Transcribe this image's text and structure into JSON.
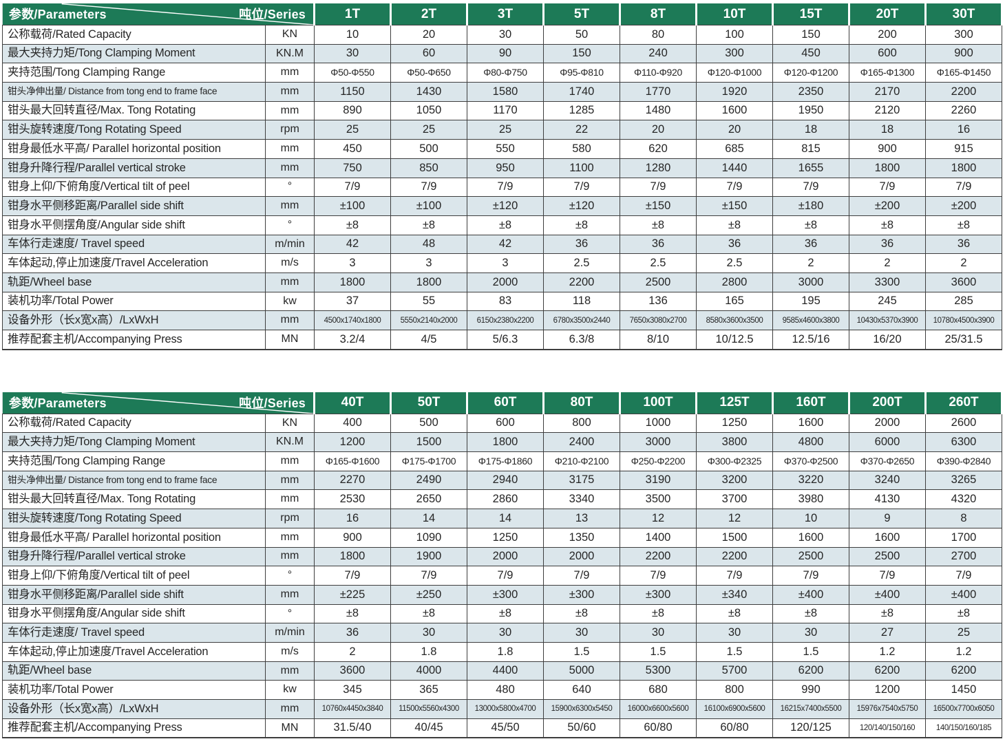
{
  "corner": {
    "parameters_label": "参数/Parameters",
    "series_label": "吨位/Series"
  },
  "colors": {
    "header_green": "#1d7a57",
    "row_alt_blue": "#dbe6eb",
    "border_dark": "#3d3d3d",
    "header_text": "#ffffff"
  },
  "parameters": [
    {
      "name": "公称载荷/Rated Capacity",
      "unit": "KN"
    },
    {
      "name": "最大夹持力矩/Tong Clamping Moment",
      "unit": "KN.M"
    },
    {
      "name": "夹持范围/Tong Clamping Range",
      "unit": "mm"
    },
    {
      "name": "钳头净伸出量/ Distance from tong end to frame face",
      "unit": "mm"
    },
    {
      "name": "钳头最大回转直径/Max. Tong Rotating",
      "unit": "mm"
    },
    {
      "name": "钳头旋转速度/Tong Rotating Speed",
      "unit": "rpm"
    },
    {
      "name": "钳身最低水平高/ Parallel horizontal position",
      "unit": "mm"
    },
    {
      "name": "钳身升降行程/Parallel vertical stroke",
      "unit": "mm"
    },
    {
      "name": "钳身上仰/下俯角度/Vertical tilt of peel",
      "unit": "°"
    },
    {
      "name": "钳身水平侧移距离/Parallel side shift",
      "unit": "mm"
    },
    {
      "name": "钳身水平侧摆角度/Angular side shift",
      "unit": "°"
    },
    {
      "name": "车体行走速度/ Travel speed",
      "unit": "m/min"
    },
    {
      "name": "车体起动,停止加速度/Travel Acceleration",
      "unit": "m/s"
    },
    {
      "name": "轨距/Wheel base",
      "unit": "mm"
    },
    {
      "name": "装机功率/Total Power",
      "unit": "kw"
    },
    {
      "name": "设备外形（长x宽x高）/LxWxH",
      "unit": "mm"
    },
    {
      "name": "推荐配套主机/Accompanying Press",
      "unit": "MN"
    }
  ],
  "tables": [
    {
      "series": [
        "1T",
        "2T",
        "3T",
        "5T",
        "8T",
        "10T",
        "15T",
        "20T",
        "30T"
      ],
      "rows": [
        [
          "10",
          "20",
          "30",
          "50",
          "80",
          "100",
          "150",
          "200",
          "300"
        ],
        [
          "30",
          "60",
          "90",
          "150",
          "240",
          "300",
          "450",
          "600",
          "900"
        ],
        [
          "Φ50-Φ550",
          "Φ50-Φ650",
          "Φ80-Φ750",
          "Φ95-Φ810",
          "Φ110-Φ920",
          "Φ120-Φ1000",
          "Φ120-Φ1200",
          "Φ165-Φ1300",
          "Φ165-Φ1450"
        ],
        [
          "1150",
          "1430",
          "1580",
          "1740",
          "1770",
          "1920",
          "2350",
          "2170",
          "2200"
        ],
        [
          "890",
          "1050",
          "1170",
          "1285",
          "1480",
          "1600",
          "1950",
          "2120",
          "2260"
        ],
        [
          "25",
          "25",
          "25",
          "22",
          "20",
          "20",
          "18",
          "18",
          "16"
        ],
        [
          "450",
          "500",
          "550",
          "580",
          "620",
          "685",
          "815",
          "900",
          "915"
        ],
        [
          "750",
          "850",
          "950",
          "1100",
          "1280",
          "1440",
          "1655",
          "1800",
          "1800"
        ],
        [
          "7/9",
          "7/9",
          "7/9",
          "7/9",
          "7/9",
          "7/9",
          "7/9",
          "7/9",
          "7/9"
        ],
        [
          "±100",
          "±100",
          "±120",
          "±120",
          "±150",
          "±150",
          "±180",
          "±200",
          "±200"
        ],
        [
          "±8",
          "±8",
          "±8",
          "±8",
          "±8",
          "±8",
          "±8",
          "±8",
          "±8"
        ],
        [
          "42",
          "48",
          "42",
          "36",
          "36",
          "36",
          "36",
          "36",
          "36"
        ],
        [
          "3",
          "3",
          "3",
          "2.5",
          "2.5",
          "2.5",
          "2",
          "2",
          "2"
        ],
        [
          "1800",
          "1800",
          "2000",
          "2200",
          "2500",
          "2800",
          "3000",
          "3300",
          "3600"
        ],
        [
          "37",
          "55",
          "83",
          "118",
          "136",
          "165",
          "195",
          "245",
          "285"
        ],
        [
          "4500x1740x1800",
          "5550x2140x2000",
          "6150x2380x2200",
          "6780x3500x2440",
          "7650x3080x2700",
          "8580x3600x3500",
          "9585x4600x3800",
          "10430x5370x3900",
          "10780x4500x3900"
        ],
        [
          "3.2/4",
          "4/5",
          "5/6.3",
          "6.3/8",
          "8/10",
          "10/12.5",
          "12.5/16",
          "16/20",
          "25/31.5"
        ]
      ]
    },
    {
      "series": [
        "40T",
        "50T",
        "60T",
        "80T",
        "100T",
        "125T",
        "160T",
        "200T",
        "260T"
      ],
      "rows": [
        [
          "400",
          "500",
          "600",
          "800",
          "1000",
          "1250",
          "1600",
          "2000",
          "2600"
        ],
        [
          "1200",
          "1500",
          "1800",
          "2400",
          "3000",
          "3800",
          "4800",
          "6000",
          "6300"
        ],
        [
          "Φ165-Φ1600",
          "Φ175-Φ1700",
          "Φ175-Φ1860",
          "Φ210-Φ2100",
          "Φ250-Φ2200",
          "Φ300-Φ2325",
          "Φ370-Φ2500",
          "Φ370-Φ2650",
          "Φ390-Φ2840"
        ],
        [
          "2270",
          "2490",
          "2940",
          "3175",
          "3190",
          "3200",
          "3220",
          "3240",
          "3265"
        ],
        [
          "2530",
          "2650",
          "2860",
          "3340",
          "3500",
          "3700",
          "3980",
          "4130",
          "4320"
        ],
        [
          "16",
          "14",
          "14",
          "13",
          "12",
          "12",
          "10",
          "9",
          "8"
        ],
        [
          "900",
          "1090",
          "1250",
          "1350",
          "1400",
          "1500",
          "1600",
          "1600",
          "1700"
        ],
        [
          "1800",
          "1900",
          "2000",
          "2000",
          "2200",
          "2200",
          "2500",
          "2500",
          "2700"
        ],
        [
          "7/9",
          "7/9",
          "7/9",
          "7/9",
          "7/9",
          "7/9",
          "7/9",
          "7/9",
          "7/9"
        ],
        [
          "±225",
          "±250",
          "±300",
          "±300",
          "±300",
          "±340",
          "±400",
          "±400",
          "±400"
        ],
        [
          "±8",
          "±8",
          "±8",
          "±8",
          "±8",
          "±8",
          "±8",
          "±8",
          "±8"
        ],
        [
          "36",
          "30",
          "30",
          "30",
          "30",
          "30",
          "30",
          "27",
          "25"
        ],
        [
          "2",
          "1.8",
          "1.8",
          "1.5",
          "1.5",
          "1.5",
          "1.5",
          "1.2",
          "1.2"
        ],
        [
          "3600",
          "4000",
          "4400",
          "5000",
          "5300",
          "5700",
          "6200",
          "6200",
          "6200"
        ],
        [
          "345",
          "365",
          "480",
          "640",
          "680",
          "800",
          "990",
          "1200",
          "1450"
        ],
        [
          "10760x4450x3840",
          "11500x5560x4300",
          "13000x5800x4700",
          "15900x6300x5450",
          "16000x6600x5600",
          "16100x6900x5600",
          "16215x7400x5500",
          "15976x7540x5750",
          "16500x7700x6050"
        ],
        [
          "31.5/40",
          "40/45",
          "45/50",
          "50/60",
          "60/80",
          "60/80",
          "120/125",
          "120/140/150/160",
          "140/150/160/185"
        ]
      ]
    }
  ]
}
